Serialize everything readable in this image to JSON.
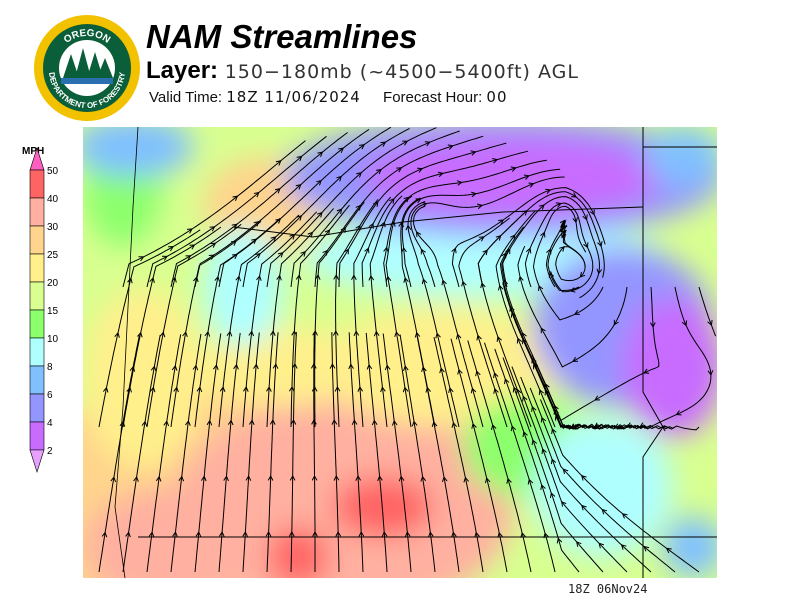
{
  "header": {
    "title": "NAM Streamlines",
    "layer_label": "Layer:",
    "layer_value": "150−180mb (~4500−5400ft) AGL",
    "valid_label": "Valid Time:",
    "valid_value": "18Z 11/06/2024",
    "forecast_label": "Forecast Hour:",
    "forecast_value": "00"
  },
  "logo": {
    "text_top": "OREGON",
    "text_bottom": "DEPARTMENT OF FORESTRY"
  },
  "legend": {
    "unit": "MPH",
    "bins": [
      {
        "label": "50",
        "color": "#ff5fc0"
      },
      {
        "label": "40",
        "color": "#ff6464"
      },
      {
        "label": "30",
        "color": "#ffb0a0"
      },
      {
        "label": "25",
        "color": "#ffd48c"
      },
      {
        "label": "20",
        "color": "#fff08c"
      },
      {
        "label": "15",
        "color": "#d8ff90"
      },
      {
        "label": "10",
        "color": "#8cff6c"
      },
      {
        "label": "8",
        "color": "#b0ffff"
      },
      {
        "label": "6",
        "color": "#80c0ff"
      },
      {
        "label": "4",
        "color": "#9496ff"
      },
      {
        "label": "2",
        "color": "#c86cff"
      },
      {
        "label": "",
        "color": "#e8a0ff"
      }
    ]
  },
  "map": {
    "streamline_color": "#000000",
    "boundary_color": "#000000"
  },
  "footer": {
    "timestamp": "18Z 06Nov24"
  }
}
